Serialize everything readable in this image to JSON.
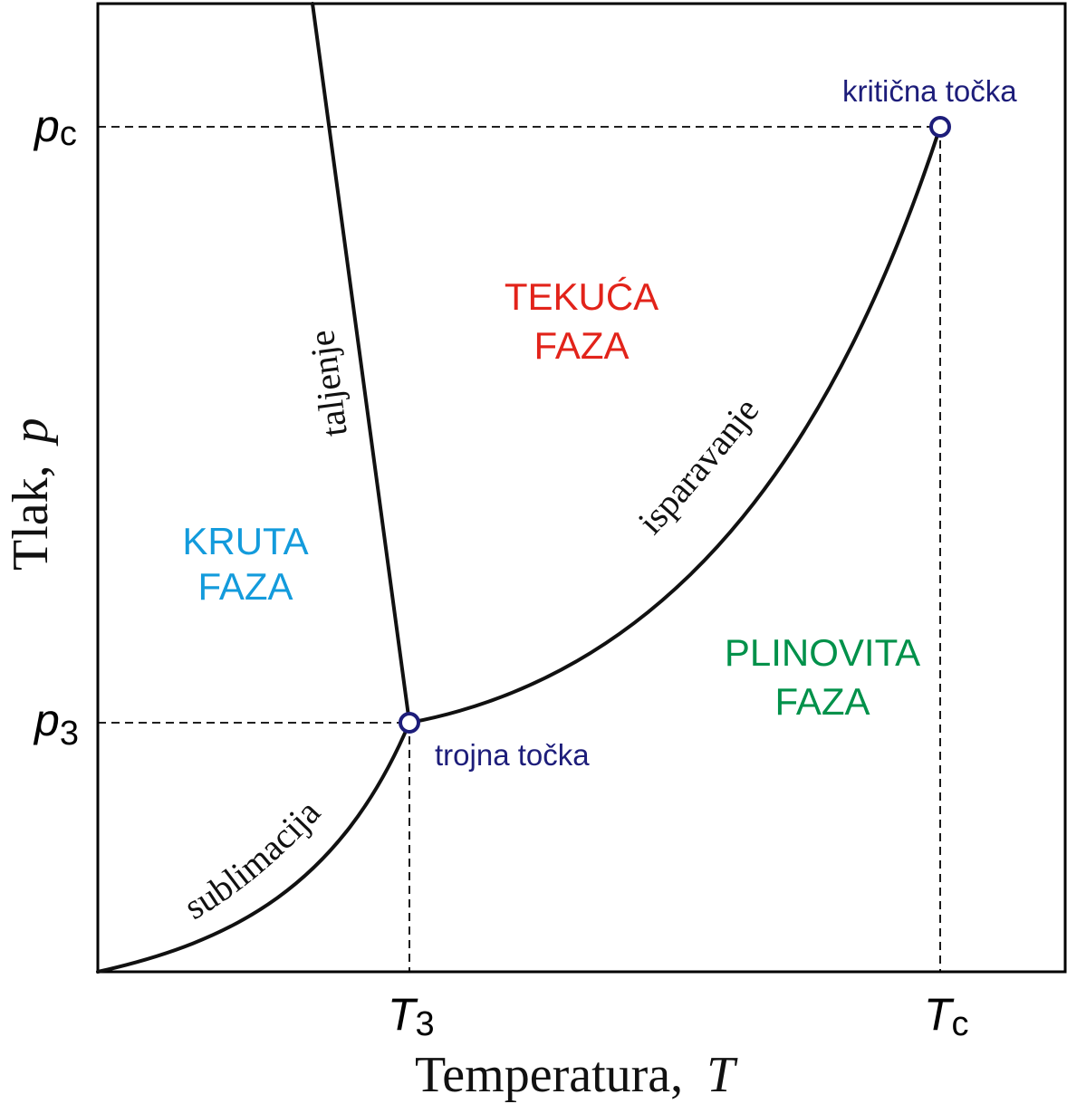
{
  "diagram": {
    "axes": {
      "x_title": "Temperatura,",
      "x_symbol": "T",
      "y_title": "Tlak,",
      "y_symbol": "p"
    },
    "ticks": {
      "p_c": {
        "base": "p",
        "sub": "c"
      },
      "p_3": {
        "base": "p",
        "sub": "3"
      },
      "T_3": {
        "base": "T",
        "sub": "3"
      },
      "T_c": {
        "base": "T",
        "sub": "c"
      }
    },
    "phases": {
      "solid": {
        "line1": "KRUTA",
        "line2": "FAZA",
        "color": "#139bdc"
      },
      "liquid": {
        "line1": "TEKUĆA",
        "line2": "FAZA",
        "color": "#e2231a"
      },
      "gas": {
        "line1": "PLINOVITA",
        "line2": "FAZA",
        "color": "#00914a"
      }
    },
    "curves": {
      "melting": "taljenje",
      "vaporization": "isparavanje",
      "sublimation": "sublimacija"
    },
    "points": {
      "triple": "trojna točka",
      "critical": "kritična točka"
    },
    "colors": {
      "curve": "#111111",
      "point_marker": "#1d1d7a"
    }
  }
}
